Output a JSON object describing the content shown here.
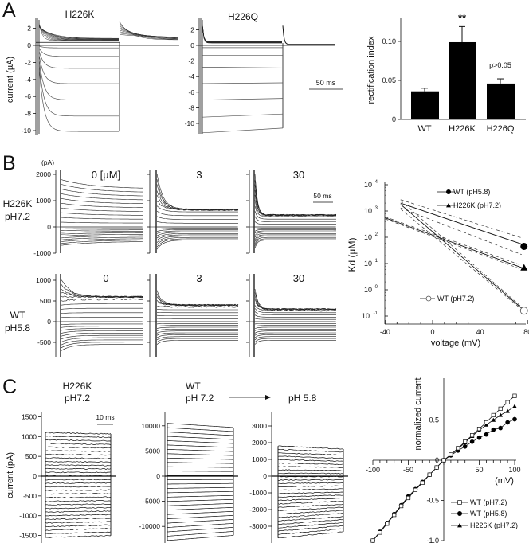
{
  "figure": {
    "panel_labels": [
      "A",
      "B",
      "C"
    ]
  },
  "chart_data": [
    {
      "type": "line",
      "title": "H226K",
      "ylabel": "current (µA)",
      "yticks": [
        "2",
        "0",
        "-2",
        "-4",
        "-6",
        "-8",
        "-10"
      ],
      "ytick_values": [
        2,
        0,
        -2,
        -4,
        -6,
        -8,
        -10
      ],
      "inward_steady_levels": [
        -0.3,
        -1.3,
        -2.7,
        -4.5,
        -6.4,
        -8.3,
        -10.1
      ],
      "outward_peak": 2.6,
      "outward_steady": 0.7
    },
    {
      "type": "line",
      "title": "H226Q",
      "yticks": [
        "2",
        "0",
        "-2",
        "-4",
        "-6",
        "-8",
        "-10"
      ],
      "ytick_values": [
        2,
        0,
        -2,
        -4,
        -6,
        -8,
        -10
      ],
      "inward_start_levels": [
        -0.3,
        -1.3,
        -2.8,
        -4.9,
        -7.0,
        -9.2,
        -11.2
      ],
      "inward_end_levels": [
        -0.3,
        -1.3,
        -2.9,
        -4.8,
        -6.8,
        -8.8,
        -10.6
      ],
      "outward_steady": 0.4,
      "scalebar": "50 ms"
    },
    {
      "type": "bar",
      "ylabel": "rectification index",
      "categories": [
        "WT",
        "H226K",
        "H226Q"
      ],
      "values": [
        0.036,
        0.099,
        0.046
      ],
      "errors": [
        0.004,
        0.02,
        0.006
      ],
      "yticks": [
        "0",
        "0.05",
        "0.10"
      ],
      "ytick_values": [
        0,
        0.05,
        0.1
      ],
      "annotations": [
        "**",
        "p>0.05"
      ],
      "ylim": [
        0,
        0.13
      ]
    },
    {
      "type": "line",
      "unit": "(pA)",
      "column_labels": [
        "0 [µM]",
        "3",
        "30"
      ],
      "row2_column_labels": [
        "0",
        "3",
        "30"
      ],
      "row_labels": [
        [
          "H226K",
          "pH7.2"
        ],
        [
          "WT",
          "pH5.8"
        ]
      ],
      "row1_yticks": [
        "2000",
        "1000",
        "0",
        "-1000"
      ],
      "row1_ytick_values": [
        2000,
        1000,
        0,
        -1000
      ],
      "row2_yticks": [
        "1000",
        "500",
        "0",
        "-500"
      ],
      "row2_ytick_values": [
        1000,
        500,
        0,
        -500
      ],
      "row1_outward_steady": [
        1450,
        650,
        450
      ],
      "row1_outward_peak": [
        1800,
        2000,
        2000
      ],
      "row1_inward_steady": [
        -550,
        -500,
        -500
      ],
      "row1_inward_peak": [
        -700,
        -850,
        -800
      ],
      "row2_outward_steady": [
        600,
        400,
        300
      ],
      "row2_outward_peak": [
        1000,
        750,
        800
      ],
      "row2_inward_steady": [
        -550,
        -450,
        -450
      ],
      "row2_inward_peak": [
        -700,
        -550,
        -550
      ],
      "scalebar": "50 ms"
    },
    {
      "type": "line",
      "yscale": "log",
      "xlabel": "voltage (mV)",
      "ylabel": "Kd (µM)",
      "xticks": [
        "-40",
        "0",
        "40",
        "80"
      ],
      "xtick_values": [
        -40,
        0,
        40,
        80
      ],
      "ytick_exponents": [
        "4",
        "3",
        "2",
        "1",
        "0",
        "-1"
      ],
      "ytick_base": "10",
      "xlim": [
        -40,
        80
      ],
      "ylim": [
        0.1,
        10000
      ],
      "series": [
        {
          "name": "WT (pH5.8)",
          "marker": "filled-circle",
          "fit": [
            [
              -27,
              2000
            ],
            [
              75,
              55
            ]
          ],
          "ci_upper": [
            [
              -27,
              2700
            ],
            [
              75,
              95
            ]
          ],
          "ci_lower": [
            [
              -27,
              1300
            ],
            [
              75,
              22
            ]
          ],
          "point": [
            77,
            45
          ]
        },
        {
          "name": "H226K (pH7.2)",
          "marker": "filled-triangle",
          "fit": [
            [
              -40,
              550
            ],
            [
              75,
              7
            ]
          ],
          "ci_upper": [
            [
              -40,
              600
            ],
            [
              75,
              8.5
            ]
          ],
          "ci_lower": [
            [
              -40,
              500
            ],
            [
              75,
              6
            ]
          ],
          "point": [
            77,
            7
          ]
        },
        {
          "name": "WT (pH7.2)",
          "marker": "open-circle",
          "fit": [
            [
              -27,
              1800
            ],
            [
              75,
              0.2
            ]
          ],
          "ci_upper": [
            [
              -27,
              2500
            ],
            [
              75,
              0.22
            ]
          ],
          "ci_lower": [
            [
              -27,
              1200
            ],
            [
              75,
              0.18
            ]
          ],
          "point": [
            77,
            0.16
          ]
        }
      ]
    },
    {
      "type": "line",
      "ylabel": "current (pA)",
      "titles": [
        [
          "H226K",
          "pH7.2"
        ],
        [
          "WT",
          "pH 7.2"
        ],
        [
          "pH 5.8"
        ]
      ],
      "panel1_yticks": [
        "1500",
        "1000",
        "500",
        "0",
        "-500",
        "-1000",
        "-1500"
      ],
      "panel1_ytick_values": [
        1500,
        1000,
        500,
        0,
        -500,
        -1000,
        -1500
      ],
      "panel2_yticks": [
        "10000",
        "5000",
        "0",
        "-5000",
        "-10000"
      ],
      "panel2_ytick_values": [
        10000,
        5000,
        0,
        -5000,
        -10000
      ],
      "panel3_yticks": [
        "3000",
        "2000",
        "1000",
        "0",
        "-1000",
        "-2000",
        "-3000"
      ],
      "panel3_ytick_values": [
        3000,
        2000,
        1000,
        0,
        -1000,
        -2000,
        -3000
      ],
      "panel_ranges": [
        [
          -1550,
          1100
        ],
        [
          -12800,
          10500
        ],
        [
          -3700,
          1800
        ]
      ],
      "scalebar": "10 ms"
    },
    {
      "type": "line",
      "xlabel": "(mV)",
      "ylabel": "normalized current",
      "x": [
        -100,
        -90,
        -80,
        -70,
        -60,
        -50,
        -40,
        -30,
        -20,
        -10,
        0,
        10,
        20,
        30,
        40,
        50,
        60,
        70,
        80,
        90,
        100
      ],
      "xticks": [
        "-100",
        "-50",
        "50",
        "100"
      ],
      "xtick_values": [
        -100,
        -50,
        50,
        100
      ],
      "yticks": [
        "0.5",
        "0",
        "-0.5",
        "-1.0"
      ],
      "ytick_values": [
        0.5,
        0,
        -0.5,
        -1.0
      ],
      "xlim": [
        -100,
        100
      ],
      "ylim": [
        -1.0,
        0.8
      ],
      "series": [
        {
          "name": "WT (pH7.2)",
          "marker": "open-square",
          "values": [
            -1.0,
            -0.9,
            -0.79,
            -0.68,
            -0.57,
            -0.47,
            -0.37,
            -0.28,
            -0.18,
            -0.09,
            0,
            0.07,
            0.15,
            0.23,
            0.31,
            0.39,
            0.47,
            0.56,
            0.64,
            0.72,
            0.8
          ]
        },
        {
          "name": "WT (pH5.8)",
          "marker": "filled-circle",
          "values": [
            -1.0,
            -0.89,
            -0.78,
            -0.67,
            -0.56,
            -0.45,
            -0.36,
            -0.27,
            -0.18,
            -0.09,
            0,
            0.06,
            0.12,
            0.17,
            0.23,
            0.28,
            0.32,
            0.38,
            0.4,
            0.47,
            0.51
          ]
        },
        {
          "name": "H226K (pH7.2)",
          "marker": "filled-triangle",
          "values": [
            -1.0,
            -0.9,
            -0.78,
            -0.68,
            -0.57,
            -0.46,
            -0.37,
            -0.27,
            -0.18,
            -0.09,
            0,
            0.07,
            0.14,
            0.22,
            0.3,
            0.37,
            0.44,
            0.5,
            0.56,
            0.61,
            0.67
          ]
        }
      ]
    }
  ]
}
